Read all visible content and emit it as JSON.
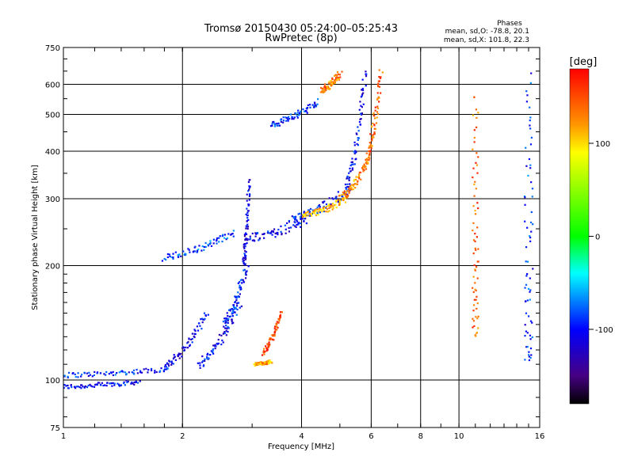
{
  "chart_data": {
    "type": "scatter",
    "title": "Tromsø 20150430 05:24:00–05:25:43",
    "subtitle": "RwPretec (8p)",
    "xlabel": "Frequency [MHz]",
    "ylabel": "Stationary phase Virtual Height [km]",
    "x_scale": "log",
    "y_scale": "log",
    "xlim": [
      1,
      16
    ],
    "ylim": [
      75,
      750
    ],
    "x_ticks": [
      "1",
      "2",
      "4",
      "6",
      "8",
      "10",
      "16"
    ],
    "x_tick_values": [
      1,
      2,
      4,
      6,
      8,
      10,
      16
    ],
    "y_ticks": [
      "75",
      "100",
      "200",
      "300",
      "400",
      "500",
      "600",
      "750"
    ],
    "y_tick_values": [
      75,
      100,
      200,
      300,
      400,
      500,
      600,
      750
    ],
    "x_gridlines": [
      2,
      4,
      6,
      8,
      10
    ],
    "y_gridlines": [
      100,
      200,
      300,
      400,
      500,
      600
    ],
    "grid": true,
    "stats": {
      "heading": "Phases",
      "line1": "mean, sd,O: -78.8, 20.1",
      "line2": "mean, sd,X: 101.8, 22.3"
    },
    "colorbar": {
      "label": "[deg]",
      "range": [
        -180,
        180
      ],
      "ticks": [
        "100",
        "0",
        "-100"
      ],
      "tick_values": [
        100,
        0,
        -100
      ],
      "colors": [
        "#ff0000",
        "#ff9900",
        "#ffff00",
        "#00ff00",
        "#00ffff",
        "#0000ff",
        "#440077",
        "#000000"
      ]
    },
    "traces": [
      {
        "f_start": 1.0,
        "f_end": 1.55,
        "h_start": 96,
        "h_end": 99,
        "phase": -105,
        "spread": 0.03
      },
      {
        "f_start": 1.0,
        "f_end": 1.85,
        "h_start": 103,
        "h_end": 107,
        "phase": -95,
        "spread": 0.03
      },
      {
        "f_start": 1.8,
        "f_end": 2.3,
        "h_start": 108,
        "h_end": 150,
        "phase": -110,
        "spread": 0.04
      },
      {
        "f_start": 2.2,
        "f_end": 2.8,
        "h_start": 110,
        "h_end": 160,
        "phase": -100,
        "spread": 0.05
      },
      {
        "f_start": 2.55,
        "f_end": 2.9,
        "h_start": 140,
        "h_end": 200,
        "phase": -95,
        "spread": 0.05
      },
      {
        "f_start": 3.05,
        "f_end": 3.35,
        "h_start": 110,
        "h_end": 112,
        "phase": 120,
        "spread": 0.02
      },
      {
        "f_start": 3.2,
        "f_end": 3.55,
        "h_start": 118,
        "h_end": 150,
        "phase": 150,
        "spread": 0.03
      },
      {
        "f_start": 1.8,
        "f_end": 2.7,
        "h_start": 210,
        "h_end": 245,
        "phase": -85,
        "spread": 0.04
      },
      {
        "f_start": 2.85,
        "f_end": 2.95,
        "h_start": 200,
        "h_end": 340,
        "phase": -110,
        "spread": 0.03
      },
      {
        "f_start": 2.9,
        "f_end": 4.1,
        "h_start": 235,
        "h_end": 265,
        "phase": -105,
        "spread": 0.06
      },
      {
        "f_start": 3.8,
        "f_end": 5.3,
        "h_start": 265,
        "h_end": 320,
        "phase": -100,
        "spread": 0.05
      },
      {
        "f_start": 5.2,
        "f_end": 5.8,
        "h_start": 320,
        "h_end": 650,
        "phase": -105,
        "spread": 0.04
      },
      {
        "f_start": 4.0,
        "f_end": 5.2,
        "h_start": 270,
        "h_end": 300,
        "phase": 110,
        "spread": 0.04
      },
      {
        "f_start": 5.0,
        "f_end": 5.9,
        "h_start": 300,
        "h_end": 380,
        "phase": 130,
        "spread": 0.04
      },
      {
        "f_start": 5.85,
        "f_end": 6.35,
        "h_start": 380,
        "h_end": 650,
        "phase": 140,
        "spread": 0.04
      },
      {
        "f_start": 3.35,
        "f_end": 4.4,
        "h_start": 470,
        "h_end": 540,
        "phase": -95,
        "spread": 0.04
      },
      {
        "f_start": 4.5,
        "f_end": 5.0,
        "h_start": 580,
        "h_end": 640,
        "phase": 130,
        "spread": 0.04
      },
      {
        "f_start": 11.0,
        "f_end": 11.0,
        "h_start": 130,
        "h_end": 560,
        "phase": 140,
        "spread": 0.06
      },
      {
        "f_start": 15.0,
        "f_end": 15.0,
        "h_start": 110,
        "h_end": 620,
        "phase": -90,
        "spread": 0.08
      }
    ]
  }
}
